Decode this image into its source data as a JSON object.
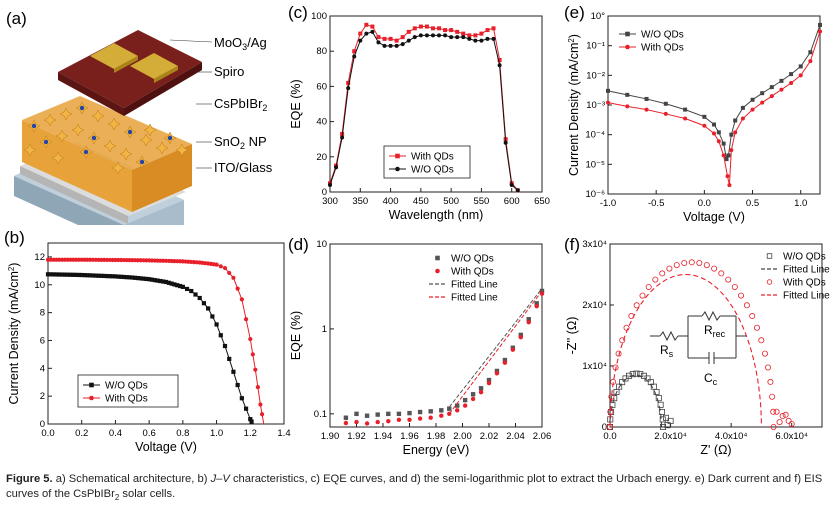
{
  "figure": {
    "caption_label": "Figure 5.",
    "caption_parts": [
      " a) Schematical architecture, b) ",
      "J–V",
      " characteristics, c) EQE curves, and d) the semi-logarithmic plot to extract the Urbach energy. e) Dark current and f) EIS curves of the CsPbIBr",
      "2",
      " solar cells."
    ]
  },
  "colors": {
    "black_series": "#111111",
    "red_series": "#e8202a",
    "device_top": "#6b1a17",
    "electrode": "#c9a227",
    "perovskite": "#e8a23a",
    "sno2": "#c9c9c9",
    "ito_glass": "#a9bccb"
  },
  "panel_a": {
    "label": "(a)",
    "layers": [
      {
        "text": "MoO",
        "sub": "3",
        "rest": "/Ag"
      },
      {
        "text": "Spiro",
        "sub": "",
        "rest": ""
      },
      {
        "text": "CsPbIBr",
        "sub": "2",
        "rest": ""
      },
      {
        "text": "SnO",
        "sub": "2",
        "rest": " NP"
      },
      {
        "text": "ITO/Glass",
        "sub": "",
        "rest": ""
      }
    ]
  },
  "chart_data": [
    {
      "id": "b",
      "label": "(b)",
      "type": "line",
      "xlabel": "Voltage (V)",
      "ylabel": "Current Density (mA/cm",
      "ylabel_sup": "2",
      "ylabel_end": ")",
      "xlim": [
        0,
        1.4
      ],
      "ylim": [
        0,
        13
      ],
      "xticks": [
        "0.0",
        "0.2",
        "0.4",
        "0.6",
        "0.8",
        "1.0",
        "1.2",
        "1.4"
      ],
      "xtick_values": [
        0,
        0.2,
        0.4,
        0.6,
        0.8,
        1.0,
        1.2,
        1.4
      ],
      "yticks": [
        "0",
        "2",
        "4",
        "6",
        "8",
        "10",
        "12"
      ],
      "ytick_values": [
        0,
        2,
        4,
        6,
        8,
        10,
        12
      ],
      "legend_position": "bottom-left",
      "series": [
        {
          "name": "W/O QDs",
          "marker": "square",
          "color": "#111111",
          "x": [
            0,
            0.1,
            0.2,
            0.3,
            0.4,
            0.5,
            0.6,
            0.7,
            0.8,
            0.85,
            0.9,
            0.95,
            1.0,
            1.05,
            1.1,
            1.15,
            1.2,
            1.215
          ],
          "y": [
            10.75,
            10.73,
            10.7,
            10.65,
            10.6,
            10.52,
            10.4,
            10.2,
            9.85,
            9.55,
            9.05,
            8.3,
            7.15,
            5.6,
            3.75,
            1.85,
            0.35,
            0
          ]
        },
        {
          "name": "With QDs",
          "marker": "circle",
          "color": "#e8202a",
          "x": [
            0,
            0.1,
            0.2,
            0.3,
            0.4,
            0.5,
            0.6,
            0.7,
            0.8,
            0.9,
            1.0,
            1.05,
            1.1,
            1.15,
            1.2,
            1.23,
            1.26,
            1.28
          ],
          "y": [
            11.8,
            11.8,
            11.8,
            11.79,
            11.78,
            11.77,
            11.75,
            11.72,
            11.68,
            11.6,
            11.45,
            11.2,
            10.5,
            8.95,
            6.1,
            3.9,
            1.4,
            0
          ]
        }
      ]
    },
    {
      "id": "c",
      "label": "(c)",
      "type": "line",
      "xlabel": "Wavelength (nm)",
      "ylabel": "EQE (%)",
      "xlim": [
        300,
        650
      ],
      "ylim": [
        0,
        100
      ],
      "xticks": [
        "300",
        "350",
        "400",
        "450",
        "500",
        "550",
        "600",
        "650"
      ],
      "xtick_values": [
        300,
        350,
        400,
        450,
        500,
        550,
        600,
        650
      ],
      "yticks": [
        "0",
        "20",
        "40",
        "60",
        "80",
        "100"
      ],
      "ytick_values": [
        0,
        20,
        40,
        60,
        80,
        100
      ],
      "legend_position": "bottom-center",
      "series": [
        {
          "name": "With QDs",
          "marker": "square",
          "color": "#e8202a",
          "x": [
            300,
            310,
            320,
            330,
            340,
            350,
            360,
            370,
            380,
            390,
            400,
            410,
            420,
            430,
            440,
            450,
            460,
            470,
            480,
            490,
            500,
            510,
            520,
            530,
            540,
            550,
            560,
            570,
            580,
            590,
            600,
            610
          ],
          "y": [
            5,
            15,
            33,
            62,
            80,
            90,
            95,
            94,
            88,
            87,
            87,
            86,
            88,
            91,
            93,
            94,
            94,
            93,
            93,
            92,
            92,
            91,
            90,
            89,
            89,
            90,
            92,
            93,
            75,
            30,
            5,
            1
          ]
        },
        {
          "name": "W/O QDs",
          "marker": "circle",
          "color": "#111111",
          "x": [
            300,
            310,
            320,
            330,
            340,
            350,
            360,
            370,
            380,
            390,
            400,
            410,
            420,
            430,
            440,
            450,
            460,
            470,
            480,
            490,
            500,
            510,
            520,
            530,
            540,
            550,
            560,
            570,
            580,
            590,
            600,
            610
          ],
          "y": [
            4,
            14,
            31,
            59,
            77,
            86,
            90,
            91,
            85,
            83,
            83,
            83,
            84,
            86,
            88,
            89,
            89,
            89,
            89,
            89,
            88,
            88,
            88,
            87,
            86,
            86,
            87,
            87,
            72,
            28,
            4,
            1
          ]
        }
      ]
    },
    {
      "id": "d",
      "label": "(d)",
      "type": "scatter",
      "xlabel": "Energy (eV)",
      "ylabel": "EQE (%)",
      "yscale": "log",
      "xlim": [
        1.9,
        2.06
      ],
      "ylim": [
        0.07,
        10
      ],
      "xticks": [
        "1.90",
        "1.92",
        "1.94",
        "1.96",
        "1.98",
        "2.00",
        "2.02",
        "2.04",
        "2.06"
      ],
      "xtick_values": [
        1.9,
        1.92,
        1.94,
        1.96,
        1.98,
        2.0,
        2.02,
        2.04,
        2.06
      ],
      "yticks": [
        "0.1",
        "1",
        "10"
      ],
      "ytick_values": [
        0.1,
        1,
        10
      ],
      "legend_position": "top-right",
      "series": [
        {
          "name": "W/O QDs",
          "marker": "square",
          "color": "#555555",
          "x": [
            1.912,
            1.92,
            1.928,
            1.936,
            1.944,
            1.952,
            1.96,
            1.968,
            1.976,
            1.984,
            1.99,
            1.996,
            2.002,
            2.008,
            2.014,
            2.02,
            2.026,
            2.032,
            2.038,
            2.044,
            2.05,
            2.056,
            2.06
          ],
          "y": [
            0.09,
            0.1,
            0.095,
            0.098,
            0.1,
            0.1,
            0.102,
            0.105,
            0.107,
            0.11,
            0.115,
            0.125,
            0.145,
            0.17,
            0.2,
            0.25,
            0.32,
            0.43,
            0.6,
            0.85,
            1.3,
            2.0,
            2.8
          ]
        },
        {
          "name": "With QDs",
          "marker": "circle",
          "color": "#e8202a",
          "x": [
            1.912,
            1.92,
            1.928,
            1.936,
            1.944,
            1.952,
            1.96,
            1.968,
            1.976,
            1.984,
            1.99,
            1.996,
            2.002,
            2.008,
            2.014,
            2.02,
            2.026,
            2.032,
            2.038,
            2.044,
            2.05,
            2.056,
            2.06
          ],
          "y": [
            0.078,
            0.08,
            0.077,
            0.08,
            0.082,
            0.085,
            0.085,
            0.088,
            0.09,
            0.095,
            0.1,
            0.11,
            0.125,
            0.15,
            0.18,
            0.23,
            0.3,
            0.4,
            0.57,
            0.8,
            1.2,
            1.85,
            2.6
          ]
        },
        {
          "name": "Fitted Line",
          "line": "dashed",
          "color": "#555555",
          "x": [
            1.99,
            2.06
          ],
          "y": [
            0.12,
            3.0
          ]
        },
        {
          "name": "Fitted Line",
          "line": "dashed",
          "color": "#e8202a",
          "x": [
            1.99,
            2.06
          ],
          "y": [
            0.1,
            2.8
          ]
        }
      ]
    },
    {
      "id": "e",
      "label": "(e)",
      "type": "line",
      "xlabel": "Voltage (V)",
      "ylabel": "Current Density (mA/cm",
      "ylabel_sup": "2",
      "ylabel_end": ")",
      "yscale": "log",
      "xlim": [
        -1.0,
        1.2
      ],
      "ylim": [
        1e-06,
        1
      ],
      "xticks": [
        "-1.0",
        "-0.5",
        "0.0",
        "0.5",
        "1.0"
      ],
      "xtick_values": [
        -1.0,
        -0.5,
        0.0,
        0.5,
        1.0
      ],
      "yticks": [
        "10°",
        "10⁻¹",
        "10⁻²",
        "10⁻³",
        "10⁻⁴",
        "10⁻⁵",
        "10⁻⁶"
      ],
      "ytick_values": [
        1,
        0.1,
        0.01,
        0.001,
        0.0001,
        1e-05,
        1e-06
      ],
      "legend_position": "top-left",
      "series": [
        {
          "name": "W/O QDs",
          "marker": "square",
          "color": "#444444",
          "x": [
            -1.0,
            -0.8,
            -0.6,
            -0.4,
            -0.2,
            0.0,
            0.1,
            0.15,
            0.2,
            0.23,
            0.25,
            0.28,
            0.32,
            0.4,
            0.5,
            0.6,
            0.7,
            0.8,
            0.9,
            1.0,
            1.1,
            1.2
          ],
          "y": [
            0.003,
            0.0022,
            0.0016,
            0.0011,
            0.0007,
            0.0004,
            0.00022,
            0.00012,
            5e-05,
            1.5e-05,
            2e-05,
            0.0001,
            0.0003,
            0.0008,
            0.0015,
            0.0025,
            0.004,
            0.0065,
            0.011,
            0.02,
            0.06,
            0.5
          ]
        },
        {
          "name": "With QDs",
          "marker": "circle",
          "color": "#e8202a",
          "x": [
            -1.0,
            -0.8,
            -0.6,
            -0.4,
            -0.2,
            0.0,
            0.1,
            0.15,
            0.2,
            0.24,
            0.26,
            0.28,
            0.32,
            0.4,
            0.5,
            0.6,
            0.7,
            0.8,
            0.9,
            1.0,
            1.1,
            1.2
          ],
          "y": [
            0.0012,
            0.0009,
            0.0007,
            0.0005,
            0.00035,
            0.0002,
            0.00011,
            6e-05,
            2e-05,
            4e-06,
            2e-06,
            3e-05,
            0.00012,
            0.00035,
            0.0007,
            0.0012,
            0.002,
            0.0033,
            0.0055,
            0.01,
            0.03,
            0.3
          ]
        }
      ]
    },
    {
      "id": "f",
      "label": "(f)",
      "type": "scatter",
      "xlabel": "Z' (Ω)",
      "ylabel": "-Z'' (Ω)",
      "xlim": [
        0,
        70000
      ],
      "ylim": [
        0,
        30000
      ],
      "xticks": [
        "0.0",
        "2.0x10⁴",
        "4.0x10⁴",
        "6.0x10⁴"
      ],
      "xtick_values": [
        0,
        20000,
        40000,
        60000
      ],
      "yticks": [
        "0",
        "1x10⁴",
        "2x10⁴",
        "3x10⁴"
      ],
      "ytick_values": [
        0,
        10000,
        20000,
        30000
      ],
      "legend_position": "top-right",
      "circuit": {
        "rs": "R",
        "rs_sub": "s",
        "rrec": "R",
        "rrec_sub": "rec",
        "cc": "C",
        "cc_sub": "c"
      },
      "series": [
        {
          "name": "W/O QDs",
          "marker": "open-square",
          "color": "#444444",
          "semicircle": {
            "x0": 0,
            "x1": 17500
          },
          "tail": [
            [
              18500,
              1500
            ],
            [
              20000,
              1000
            ],
            [
              19000,
              300
            ]
          ]
        },
        {
          "name": "Fitted Line",
          "line": "dashed",
          "color": "#444444",
          "semicircle": {
            "x0": 0,
            "x1": 17000
          }
        },
        {
          "name": "With QDs",
          "marker": "open-circle",
          "color": "#e8202a",
          "semicircle": {
            "x0": 0,
            "x1": 54000
          },
          "tail": [
            [
              55000,
              2500
            ],
            [
              57000,
              1800
            ],
            [
              59000,
              1000
            ],
            [
              60000,
              500
            ],
            [
              58000,
              2000
            ],
            [
              56000,
              800
            ]
          ]
        },
        {
          "name": "Fitted Line",
          "line": "dashed",
          "color": "#e8202a",
          "semicircle": {
            "x0": 0,
            "x1": 50000
          }
        }
      ]
    }
  ]
}
